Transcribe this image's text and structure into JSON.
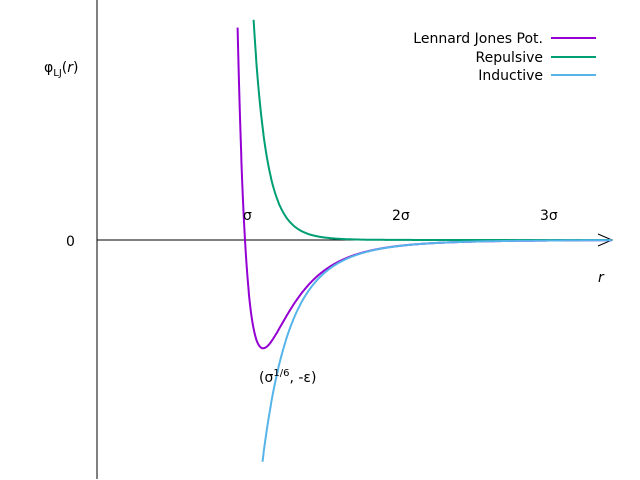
{
  "chart_data": {
    "type": "line",
    "title": "",
    "ylabel": "φ_LJ(r)",
    "ylabel_main": "φ",
    "ylabel_sub": "LJ",
    "ylabel_var": "r",
    "ylabel_open": "(",
    "ylabel_close": ")",
    "xlabel": "r",
    "x_tick_labels": [
      "σ",
      "2σ",
      "3σ"
    ],
    "y_tick_labels": [
      "0"
    ],
    "annotation": {
      "prefix": "(σ",
      "superscript": "1/6",
      "suffix": ", -ε)"
    },
    "xlim": [
      0,
      3.5
    ],
    "ylim": [
      -1.6,
      1.5
    ],
    "grid": false,
    "legend_position": "top-right",
    "series": [
      {
        "name": "Lennard Jones Pot.",
        "color": "#9400d3",
        "function": "4*(r^-12 - r^-6)"
      },
      {
        "name": "Repulsive",
        "color": "#009e73",
        "function": "4*r^-12"
      },
      {
        "name": "Inductive",
        "color": "#56b4e9",
        "function": "-4*r^-6"
      }
    ]
  }
}
